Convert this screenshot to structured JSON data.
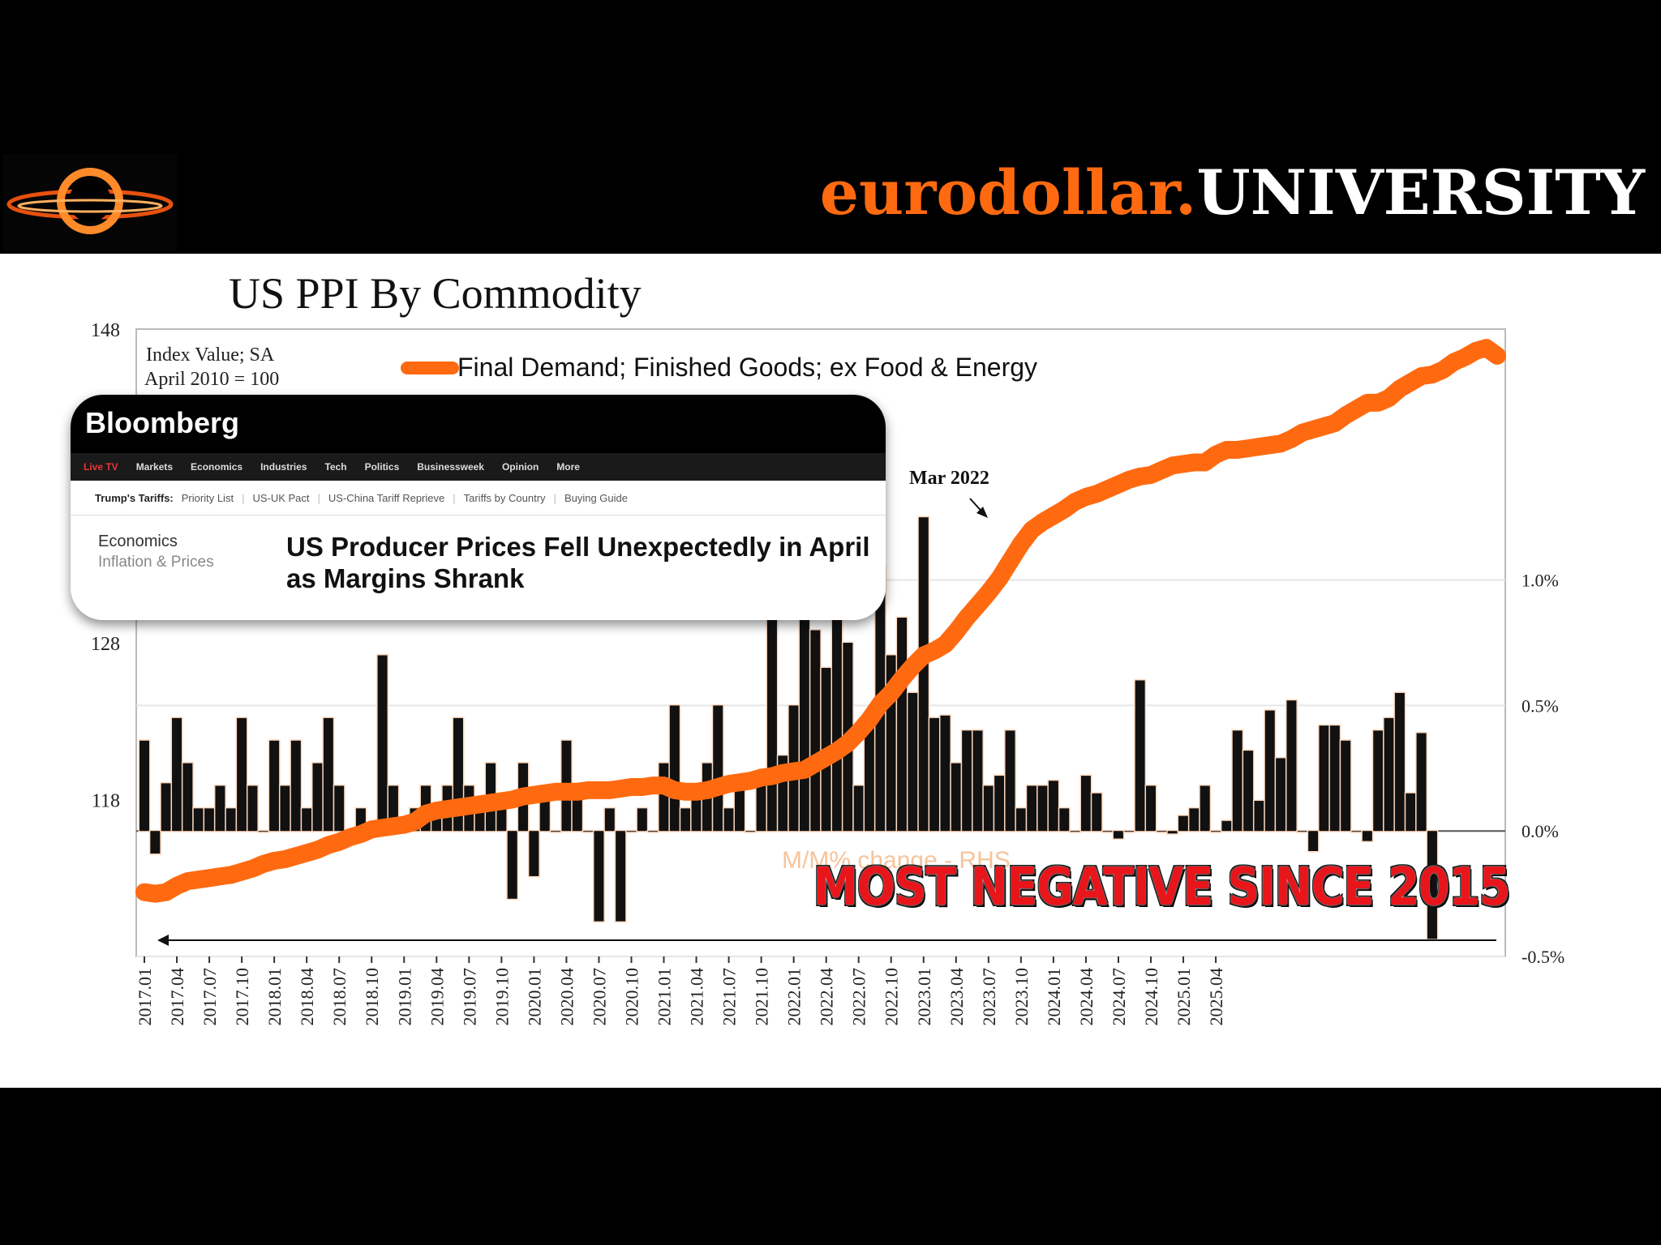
{
  "header": {
    "brand_part1": "eurodollar.",
    "brand_part2": "UNIVERSITY",
    "logo_icon": "black-hole-icon",
    "accent_color": "#ff6a10"
  },
  "chart_title": "US PPI By Commodity",
  "bloomberg": {
    "logo": "Bloomberg",
    "nav": [
      "Live TV",
      "Markets",
      "Economics",
      "Industries",
      "Tech",
      "Politics",
      "Businessweek",
      "Opinion",
      "More"
    ],
    "tariffs_label": "Trump's Tariffs:",
    "tariff_links": [
      "Priority List",
      "US-UK Pact",
      "US-China Tariff Reprieve",
      "Tariffs by Country",
      "Buying Guide"
    ],
    "section": "Economics",
    "subsection": "Inflation & Prices",
    "headline": "US Producer Prices Fell Unexpectedly in April as Margins Shrank"
  },
  "banner_text": "MOST NEGATIVE SINCE 2015",
  "chart_data": {
    "type": "bar+line",
    "left_axis_label_line1": "Index Value; SA",
    "left_axis_label_line2": "April 2010 = 100",
    "left_ticks": [
      118,
      128,
      148
    ],
    "left_ylim": [
      108,
      148
    ],
    "right_ticks": [
      "1.0%",
      "0.5%",
      "0.0%",
      "-0.5%"
    ],
    "right_tick_values": [
      1.0,
      0.5,
      0.0,
      -0.5
    ],
    "right_ylim": [
      -0.5,
      2.0
    ],
    "x_tick_labels": [
      "2017.01",
      "2017.04",
      "2017.07",
      "2017.10",
      "2018.01",
      "2018.04",
      "2018.07",
      "2018.10",
      "2019.01",
      "2019.04",
      "2019.07",
      "2019.10",
      "2020.01",
      "2020.04",
      "2020.07",
      "2020.10",
      "2021.01",
      "2021.04",
      "2021.07",
      "2021.10",
      "2022.01",
      "2022.04",
      "2022.07",
      "2022.10",
      "2023.01",
      "2023.04",
      "2023.07",
      "2023.10",
      "2024.01",
      "2024.04",
      "2024.07",
      "2024.10",
      "2025.01",
      "2025.04"
    ],
    "start_month": "2017.01",
    "end_month": "2025.04",
    "line_series": {
      "name": "Final Demand; Finished Goods; ex Food & Energy",
      "color": "#ff6a10",
      "values": [
        112.1,
        112.0,
        112.1,
        112.5,
        112.8,
        112.9,
        113.0,
        113.1,
        113.2,
        113.4,
        113.6,
        113.9,
        114.1,
        114.2,
        114.4,
        114.6,
        114.8,
        115.1,
        115.3,
        115.6,
        115.8,
        116.1,
        116.2,
        116.3,
        116.4,
        116.6,
        117.1,
        117.3,
        117.4,
        117.5,
        117.6,
        117.7,
        117.8,
        117.9,
        118.0,
        118.2,
        118.3,
        118.4,
        118.5,
        118.5,
        118.5,
        118.6,
        118.6,
        118.6,
        118.7,
        118.8,
        118.8,
        118.9,
        118.9,
        118.6,
        118.5,
        118.5,
        118.6,
        118.8,
        119.0,
        119.1,
        119.2,
        119.4,
        119.5,
        119.7,
        119.8,
        119.9,
        120.3,
        120.7,
        121.1,
        121.6,
        122.3,
        123.1,
        124.1,
        124.8,
        125.7,
        126.5,
        127.2,
        127.5,
        127.9,
        128.7,
        129.6,
        130.4,
        131.2,
        132.1,
        133.2,
        134.3,
        135.2,
        135.7,
        136.1,
        136.5,
        137.0,
        137.3,
        137.5,
        137.8,
        138.1,
        138.4,
        138.6,
        138.7,
        139.0,
        139.3,
        139.4,
        139.5,
        139.5,
        140.0,
        140.3,
        140.3,
        140.4,
        140.5,
        140.6,
        140.7,
        141.0,
        141.4,
        141.6,
        141.8,
        142.0,
        142.5,
        142.9,
        143.3,
        143.3,
        143.6,
        144.2,
        144.6,
        145.0,
        145.1,
        145.4,
        145.9,
        146.2,
        146.6,
        146.8,
        146.3
      ],
      "annotation": "Mar 2022"
    },
    "bar_series": {
      "name": "M/M% change - RHS",
      "color": "#111111",
      "values": [
        0.36,
        -0.09,
        0.19,
        0.45,
        0.27,
        0.09,
        0.09,
        0.18,
        0.09,
        0.45,
        0.18,
        0.0,
        0.36,
        0.18,
        0.36,
        0.09,
        0.27,
        0.45,
        0.18,
        0.0,
        0.09,
        0.0,
        0.7,
        0.18,
        0.0,
        0.09,
        0.18,
        0.09,
        0.18,
        0.45,
        0.18,
        0.09,
        0.27,
        0.09,
        -0.27,
        0.27,
        -0.18,
        0.18,
        0.0,
        0.36,
        0.18,
        0.0,
        -0.36,
        0.09,
        -0.36,
        0.0,
        0.09,
        0.0,
        0.27,
        0.5,
        0.09,
        0.18,
        0.27,
        0.5,
        0.09,
        0.18,
        0.0,
        0.18,
        0.9,
        0.3,
        0.5,
        0.9,
        0.8,
        0.65,
        0.95,
        0.75,
        0.18,
        0.45,
        1.05,
        0.7,
        0.85,
        0.55,
        1.25,
        0.45,
        0.46,
        0.27,
        0.4,
        0.4,
        0.18,
        0.22,
        0.4,
        0.09,
        0.18,
        0.18,
        0.2,
        0.09,
        0.0,
        0.22,
        0.15,
        0.0,
        -0.03,
        0.0,
        0.6,
        0.18,
        0.0,
        -0.01,
        0.06,
        0.09,
        0.18,
        0.0,
        0.04,
        0.4,
        0.32,
        0.12,
        0.48,
        0.29,
        0.52,
        0.0,
        -0.08,
        0.42,
        0.42,
        0.36,
        0.0,
        -0.04,
        0.4,
        0.45,
        0.55,
        0.15,
        0.39,
        -0.43
      ]
    }
  }
}
